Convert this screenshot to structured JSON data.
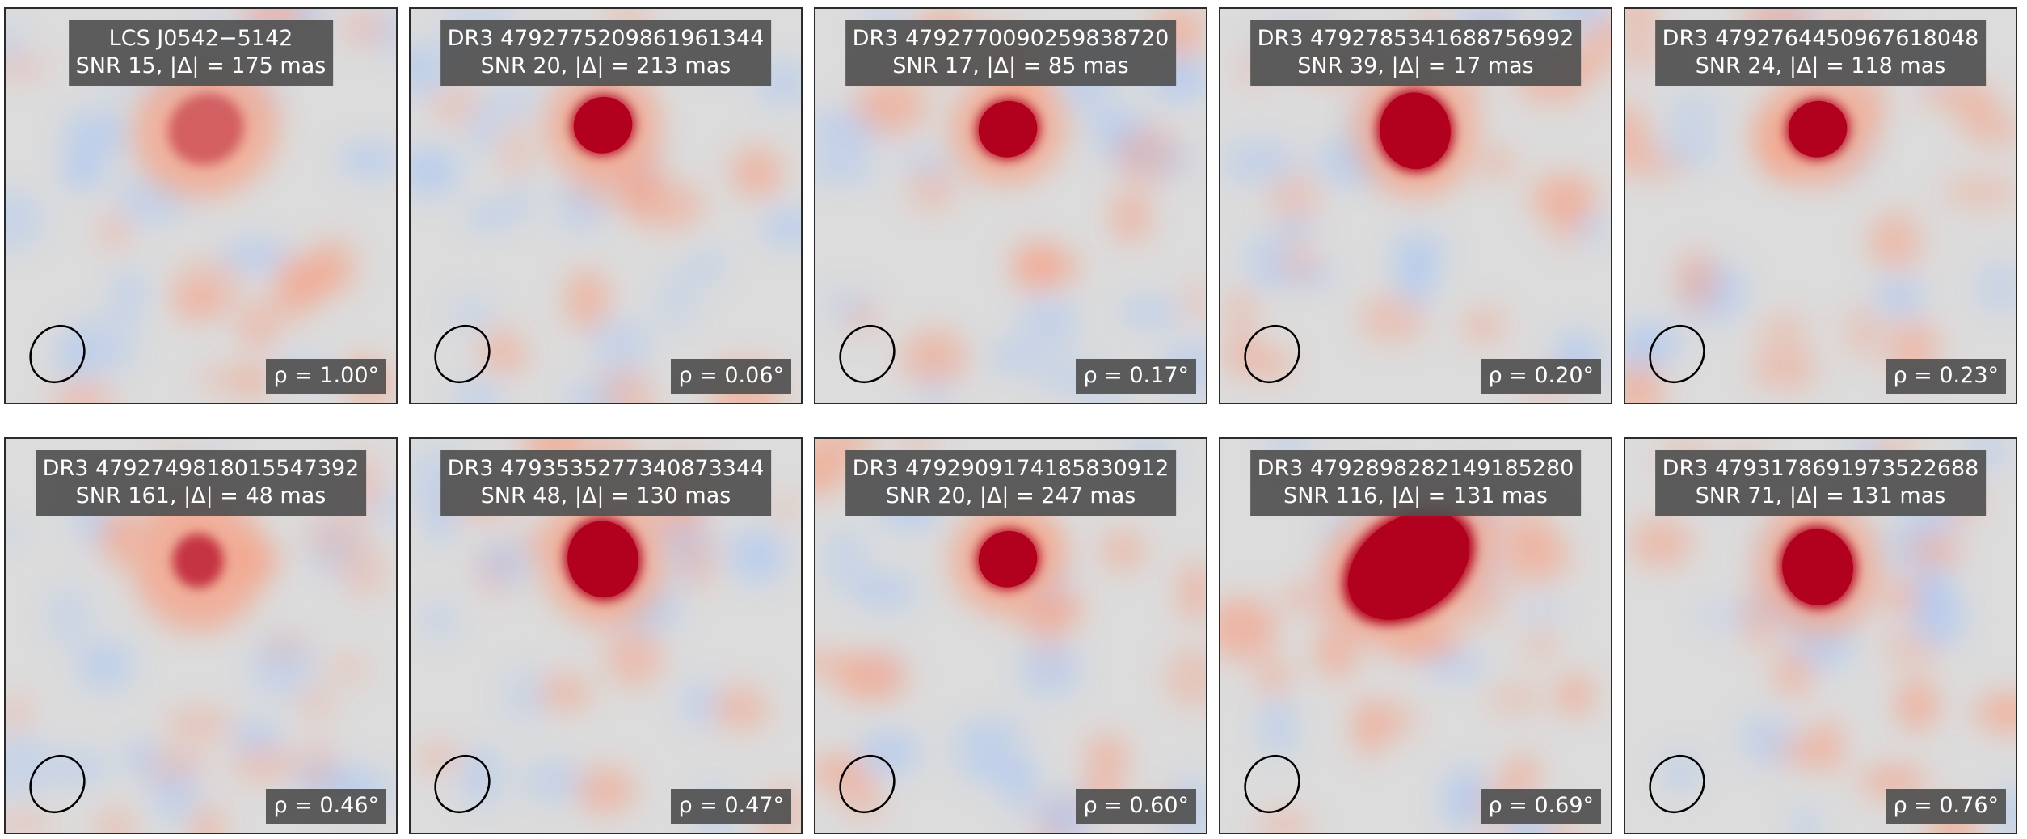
{
  "colors": {
    "background": "#dcdcdc",
    "positive": "#b2001f",
    "positive_soft": "#f4a48a",
    "negative_soft": "#aec8f2",
    "label_box": "#505050",
    "label_text": "#ffffff",
    "beam_outline": "#000000"
  },
  "colormap": "diverging blue-white-red (coolwarm)",
  "panels": [
    {
      "line1": "LCS J0542−5142",
      "line2": "SNR 15, |Δ| = 175 mas",
      "rho": "ρ = 1.00°",
      "source_strength": "weak",
      "seed": 3
    },
    {
      "line1": "DR3 4792775209861961344",
      "line2": "SNR 20, |Δ| = 213 mas",
      "rho": "ρ = 0.06°",
      "source_strength": "medium",
      "seed": 7
    },
    {
      "line1": "DR3 4792770090259838720",
      "line2": "SNR 17, |Δ| = 85 mas",
      "rho": "ρ = 0.17°",
      "source_strength": "medium",
      "seed": 11
    },
    {
      "line1": "DR3 4792785341688756992",
      "line2": "SNR 39, |Δ| = 17 mas",
      "rho": "ρ = 0.20°",
      "source_strength": "strong",
      "seed": 13
    },
    {
      "line1": "DR3 4792764450967618048",
      "line2": "SNR 24, |Δ| = 118 mas",
      "rho": "ρ = 0.23°",
      "source_strength": "medium",
      "seed": 17
    },
    {
      "line1": "DR3 4792749818015547392",
      "line2": "SNR 161, |Δ| = 48 mas",
      "rho": "ρ = 0.46°",
      "source_strength": "compact",
      "seed": 19
    },
    {
      "line1": "DR3 4793535277340873344",
      "line2": "SNR 48, |Δ| = 130 mas",
      "rho": "ρ = 0.47°",
      "source_strength": "strong",
      "seed": 23
    },
    {
      "line1": "DR3 4792909174185830912",
      "line2": "SNR 20, |Δ| = 247 mas",
      "rho": "ρ = 0.60°",
      "source_strength": "medium",
      "seed": 29
    },
    {
      "line1": "DR3 4792898282149185280",
      "line2": "SNR 116, |Δ| = 131 mas",
      "rho": "ρ = 0.69°",
      "source_strength": "very-strong",
      "seed": 31
    },
    {
      "line1": "DR3 4793178691973522688",
      "line2": "SNR 71, |Δ| = 131 mas",
      "rho": "ρ = 0.76°",
      "source_strength": "strong",
      "seed": 37
    }
  ]
}
